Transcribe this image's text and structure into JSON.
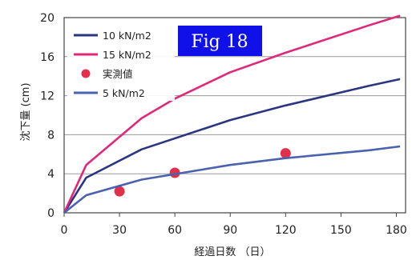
{
  "chart_data": {
    "type": "line",
    "xlabel": "経過日数 （日）",
    "ylabel": "沈下量 (cm)",
    "xlim": [
      0,
      185
    ],
    "ylim": [
      0,
      20
    ],
    "xticks": [
      "0",
      "30",
      "60",
      "90",
      "120",
      "150",
      "180"
    ],
    "yticks": [
      "0",
      "4",
      "8",
      "12",
      "16",
      "20"
    ],
    "grid": "horizontal",
    "legend_position": "top-left",
    "annotation": "Fig 18",
    "series": [
      {
        "name": "10 kN/m2",
        "kind": "line",
        "color": "#2b3580",
        "x": [
          0,
          12,
          42,
          90,
          120,
          165,
          182
        ],
        "y": [
          0,
          3.6,
          6.5,
          9.5,
          11.0,
          13.0,
          13.7
        ]
      },
      {
        "name": "15 kN/m2",
        "kind": "line",
        "color": "#e0287a",
        "x": [
          0,
          12,
          42,
          60,
          90,
          120,
          165,
          182
        ],
        "y": [
          0,
          4.9,
          9.7,
          11.7,
          14.4,
          16.4,
          19.2,
          20.2
        ]
      },
      {
        "name": "実測値",
        "kind": "scatter",
        "color": "#e0304a",
        "x": [
          30,
          60,
          120
        ],
        "y": [
          2.2,
          4.1,
          6.1
        ]
      },
      {
        "name": "5 kN/m2",
        "kind": "line",
        "color": "#4a62b0",
        "x": [
          0,
          12,
          42,
          90,
          120,
          165,
          182
        ],
        "y": [
          0,
          1.8,
          3.4,
          4.9,
          5.6,
          6.4,
          6.8
        ]
      }
    ]
  }
}
